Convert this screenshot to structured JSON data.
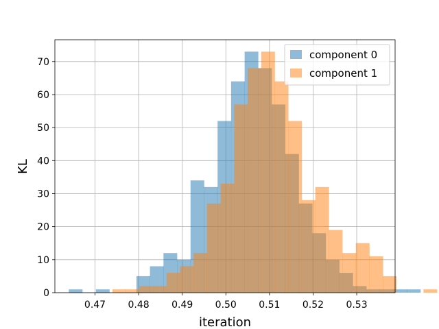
{
  "chart_data": {
    "type": "bar",
    "xlabel": "iteration",
    "ylabel": "KL",
    "xlim": [
      0.4608,
      0.5388
    ],
    "ylim": [
      0,
      76.6
    ],
    "xticks": [
      0.47,
      0.48,
      0.49,
      0.5,
      0.51,
      0.52,
      0.53
    ],
    "xtick_labels": [
      "0.47",
      "0.48",
      "0.49",
      "0.50",
      "0.51",
      "0.52",
      "0.53"
    ],
    "yticks": [
      0,
      10,
      20,
      30,
      40,
      50,
      60,
      70
    ],
    "ytick_labels": [
      "0",
      "10",
      "20",
      "30",
      "40",
      "50",
      "60",
      "70"
    ],
    "grid": true,
    "legend_position": "top-right",
    "series": [
      {
        "name": "component 0",
        "color": "#1f77b4",
        "alpha": 0.5,
        "bin_start": 0.464,
        "bin_width": 0.0031,
        "counts": [
          1,
          0,
          1,
          0,
          0,
          5,
          8,
          12,
          10,
          34,
          32,
          52,
          64,
          73,
          68,
          57,
          42,
          27,
          18,
          10,
          6,
          2,
          1,
          1,
          1,
          1,
          0
        ]
      },
      {
        "name": "component 1",
        "color": "#ff7f0e",
        "alpha": 0.5,
        "bin_start": 0.474,
        "bin_width": 0.0031,
        "counts": [
          1,
          1,
          2,
          2,
          6,
          8,
          12,
          27,
          33,
          57,
          68,
          73,
          64,
          52,
          28,
          32,
          19,
          12,
          15,
          11,
          5,
          0,
          0,
          1,
          0,
          1
        ]
      }
    ]
  }
}
